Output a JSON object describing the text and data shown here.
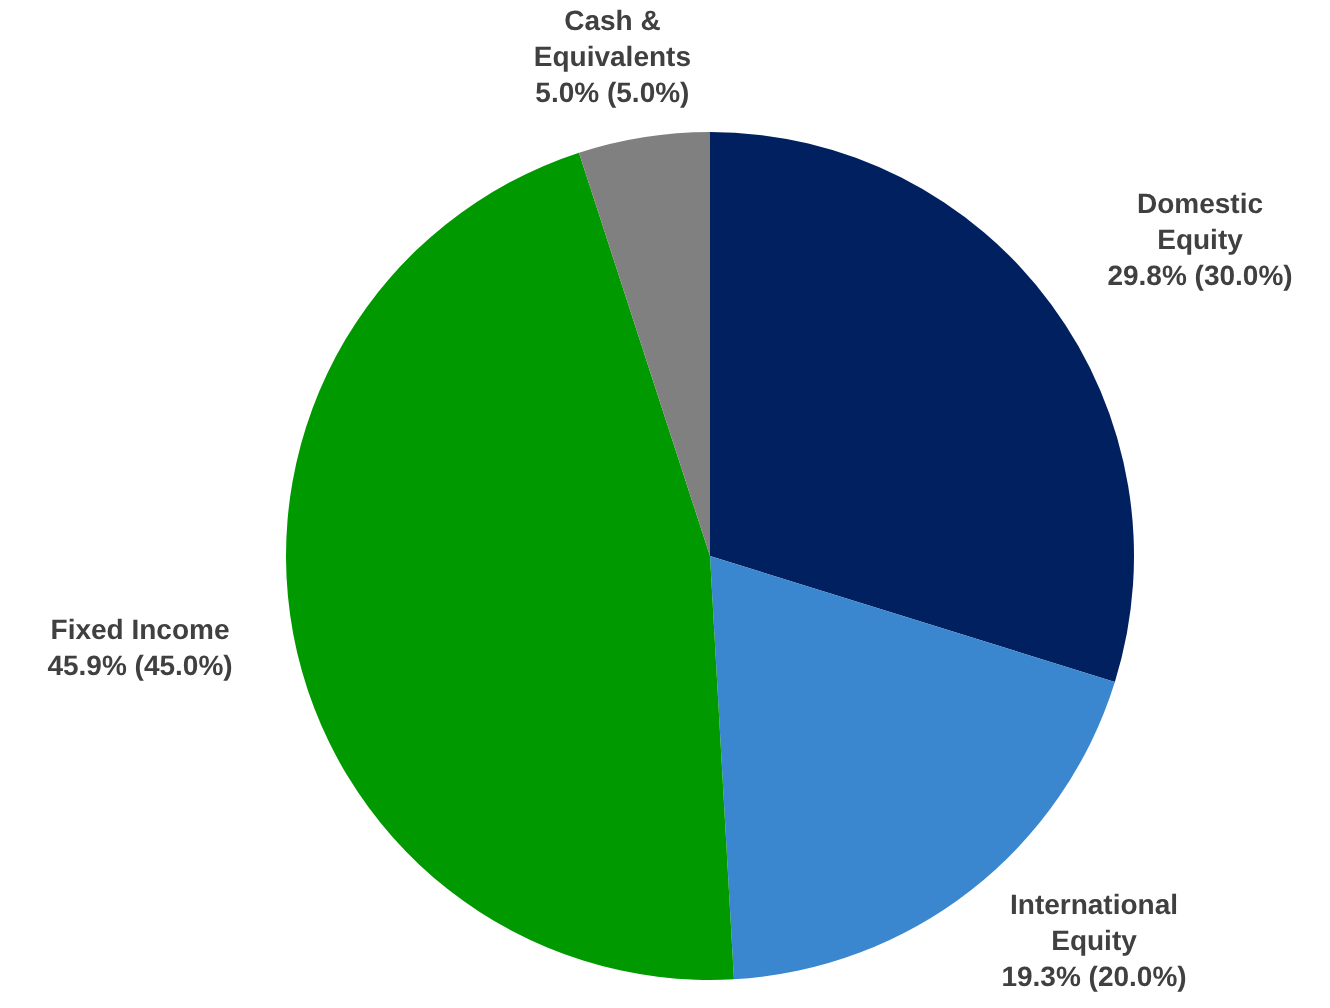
{
  "chart_data": {
    "type": "pie",
    "categories": [
      "Domestic Equity",
      "International Equity",
      "Fixed Income",
      "Cash & Equivalents"
    ],
    "values": [
      29.8,
      19.3,
      45.9,
      5.0
    ],
    "colors": [
      "#002060",
      "#3a87d0",
      "#009a00",
      "#808080"
    ],
    "value_labels": [
      "29.8% (30.0%)",
      "19.3% (20.0%)",
      "45.9% (45.0%)",
      "5.0% (5.0%)"
    ]
  }
}
